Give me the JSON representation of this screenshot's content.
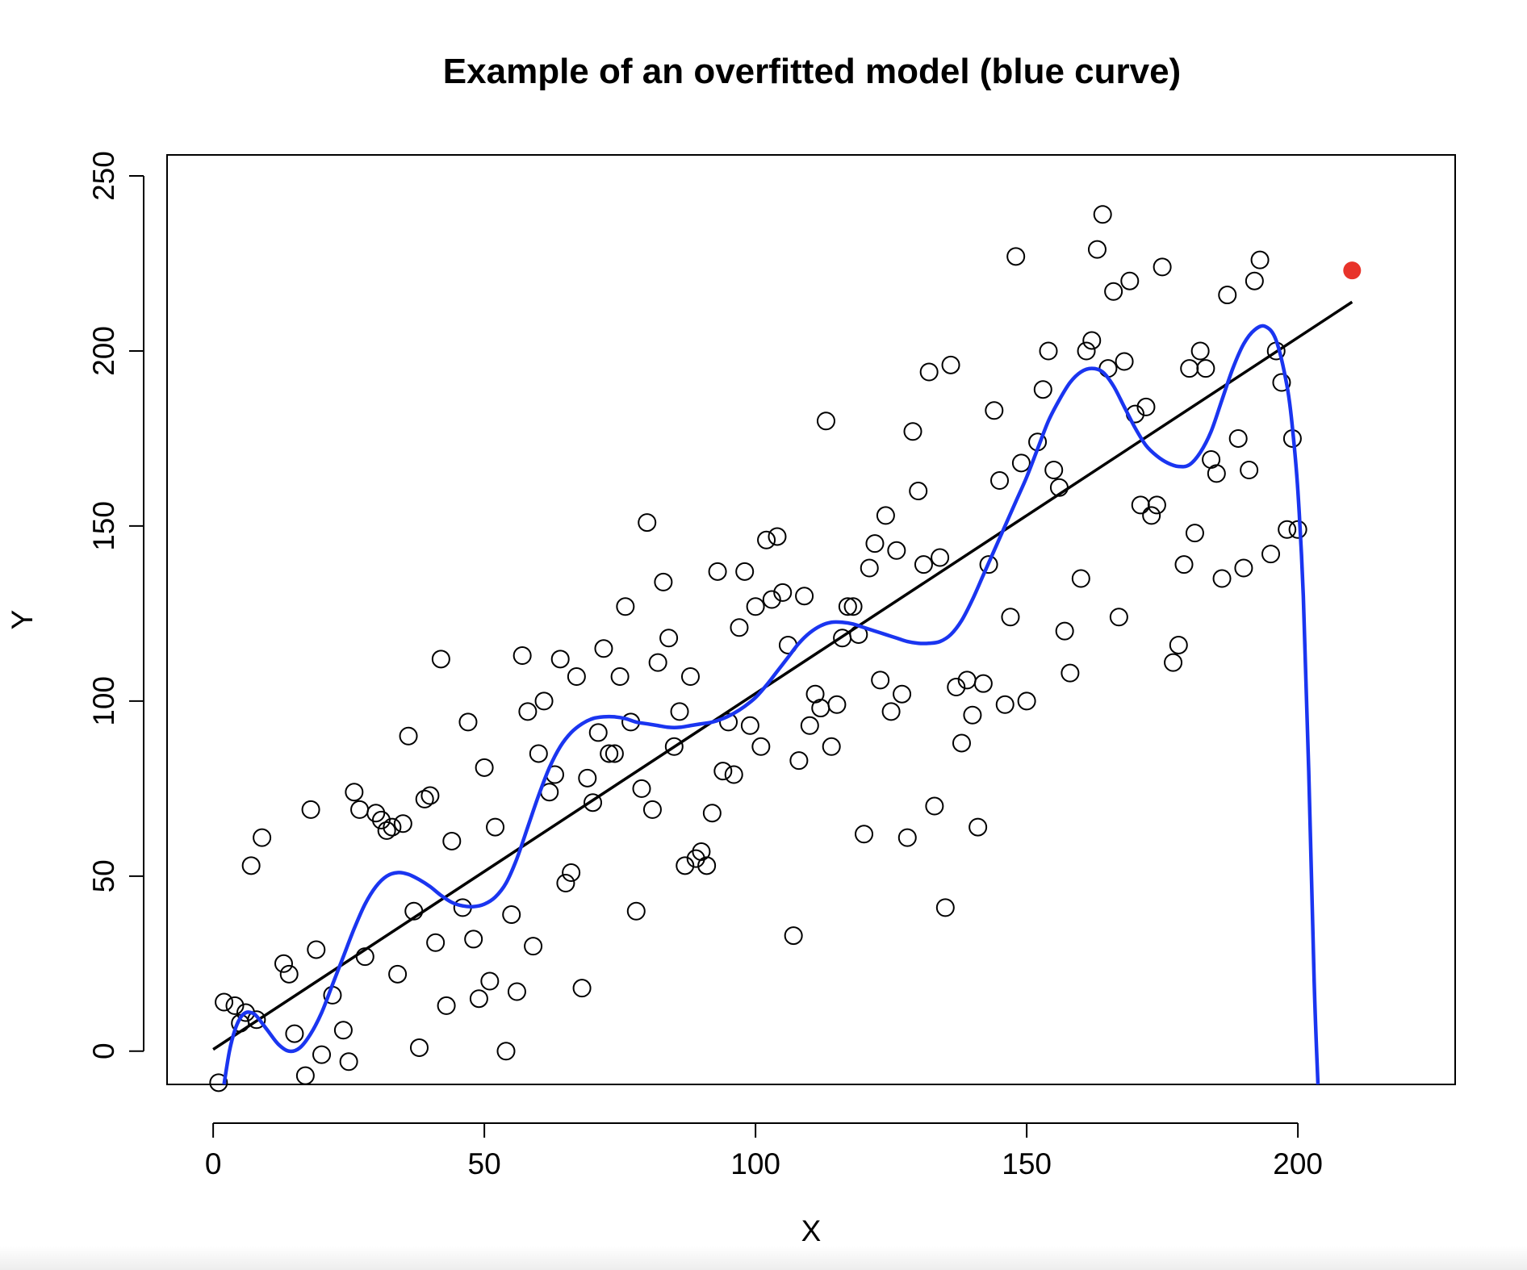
{
  "chart_data": {
    "type": "scatter",
    "title": "Example of an overfitted model (blue curve)",
    "xlabel": "X",
    "ylabel": "Y",
    "xlim": [
      -8.5,
      229
    ],
    "ylim": [
      -9.5,
      256
    ],
    "x_ticks": [
      0,
      50,
      100,
      150,
      200
    ],
    "y_ticks": [
      0,
      50,
      100,
      150,
      200,
      250
    ],
    "grid": false,
    "colors": {
      "points": "#000000",
      "linear_fit": "#000000",
      "overfit_curve": "#1a35f0",
      "highlight": "#e8332a"
    },
    "points": [
      [
        1,
        -9
      ],
      [
        2,
        14
      ],
      [
        4,
        13
      ],
      [
        5,
        8
      ],
      [
        6,
        11
      ],
      [
        7,
        53
      ],
      [
        8,
        9
      ],
      [
        9,
        61
      ],
      [
        13,
        25
      ],
      [
        14,
        22
      ],
      [
        15,
        5
      ],
      [
        17,
        -7
      ],
      [
        18,
        69
      ],
      [
        19,
        29
      ],
      [
        20,
        -1
      ],
      [
        22,
        16
      ],
      [
        24,
        6
      ],
      [
        25,
        -3
      ],
      [
        26,
        74
      ],
      [
        27,
        69
      ],
      [
        28,
        27
      ],
      [
        30,
        68
      ],
      [
        31,
        66
      ],
      [
        32,
        63
      ],
      [
        33,
        64
      ],
      [
        34,
        22
      ],
      [
        35,
        65
      ],
      [
        36,
        90
      ],
      [
        37,
        40
      ],
      [
        38,
        1
      ],
      [
        39,
        72
      ],
      [
        40,
        73
      ],
      [
        41,
        31
      ],
      [
        42,
        112
      ],
      [
        43,
        13
      ],
      [
        44,
        60
      ],
      [
        46,
        41
      ],
      [
        47,
        94
      ],
      [
        48,
        32
      ],
      [
        49,
        15
      ],
      [
        50,
        81
      ],
      [
        51,
        20
      ],
      [
        52,
        64
      ],
      [
        54,
        0
      ],
      [
        55,
        39
      ],
      [
        56,
        17
      ],
      [
        57,
        113
      ],
      [
        58,
        97
      ],
      [
        59,
        30
      ],
      [
        60,
        85
      ],
      [
        61,
        100
      ],
      [
        62,
        74
      ],
      [
        63,
        79
      ],
      [
        64,
        112
      ],
      [
        65,
        48
      ],
      [
        66,
        51
      ],
      [
        67,
        107
      ],
      [
        68,
        18
      ],
      [
        69,
        78
      ],
      [
        70,
        71
      ],
      [
        71,
        91
      ],
      [
        72,
        115
      ],
      [
        73,
        85
      ],
      [
        74,
        85
      ],
      [
        75,
        107
      ],
      [
        76,
        127
      ],
      [
        77,
        94
      ],
      [
        78,
        40
      ],
      [
        79,
        75
      ],
      [
        80,
        151
      ],
      [
        81,
        69
      ],
      [
        82,
        111
      ],
      [
        83,
        134
      ],
      [
        84,
        118
      ],
      [
        85,
        87
      ],
      [
        86,
        97
      ],
      [
        87,
        53
      ],
      [
        88,
        107
      ],
      [
        89,
        55
      ],
      [
        90,
        57
      ],
      [
        91,
        53
      ],
      [
        92,
        68
      ],
      [
        93,
        137
      ],
      [
        94,
        80
      ],
      [
        95,
        94
      ],
      [
        96,
        79
      ],
      [
        97,
        121
      ],
      [
        98,
        137
      ],
      [
        99,
        93
      ],
      [
        100,
        127
      ],
      [
        101,
        87
      ],
      [
        102,
        146
      ],
      [
        103,
        129
      ],
      [
        104,
        147
      ],
      [
        105,
        131
      ],
      [
        106,
        116
      ],
      [
        107,
        33
      ],
      [
        108,
        83
      ],
      [
        109,
        130
      ],
      [
        110,
        93
      ],
      [
        111,
        102
      ],
      [
        112,
        98
      ],
      [
        113,
        180
      ],
      [
        114,
        87
      ],
      [
        115,
        99
      ],
      [
        116,
        118
      ],
      [
        117,
        127
      ],
      [
        118,
        127
      ],
      [
        119,
        119
      ],
      [
        120,
        62
      ],
      [
        121,
        138
      ],
      [
        122,
        145
      ],
      [
        123,
        106
      ],
      [
        124,
        153
      ],
      [
        125,
        97
      ],
      [
        126,
        143
      ],
      [
        127,
        102
      ],
      [
        128,
        61
      ],
      [
        129,
        177
      ],
      [
        130,
        160
      ],
      [
        131,
        139
      ],
      [
        132,
        194
      ],
      [
        133,
        70
      ],
      [
        134,
        141
      ],
      [
        135,
        41
      ],
      [
        136,
        196
      ],
      [
        137,
        104
      ],
      [
        138,
        88
      ],
      [
        139,
        106
      ],
      [
        140,
        96
      ],
      [
        141,
        64
      ],
      [
        142,
        105
      ],
      [
        143,
        139
      ],
      [
        144,
        183
      ],
      [
        145,
        163
      ],
      [
        146,
        99
      ],
      [
        147,
        124
      ],
      [
        148,
        227
      ],
      [
        149,
        168
      ],
      [
        150,
        100
      ],
      [
        152,
        174
      ],
      [
        153,
        189
      ],
      [
        154,
        200
      ],
      [
        155,
        166
      ],
      [
        156,
        161
      ],
      [
        157,
        120
      ],
      [
        158,
        108
      ],
      [
        160,
        135
      ],
      [
        161,
        200
      ],
      [
        162,
        203
      ],
      [
        163,
        229
      ],
      [
        164,
        239
      ],
      [
        165,
        195
      ],
      [
        166,
        217
      ],
      [
        167,
        124
      ],
      [
        168,
        197
      ],
      [
        169,
        220
      ],
      [
        170,
        182
      ],
      [
        171,
        156
      ],
      [
        172,
        184
      ],
      [
        173,
        153
      ],
      [
        174,
        156
      ],
      [
        175,
        224
      ],
      [
        177,
        111
      ],
      [
        178,
        116
      ],
      [
        179,
        139
      ],
      [
        180,
        195
      ],
      [
        181,
        148
      ],
      [
        182,
        200
      ],
      [
        183,
        195
      ],
      [
        184,
        169
      ],
      [
        185,
        165
      ],
      [
        186,
        135
      ],
      [
        187,
        216
      ],
      [
        189,
        175
      ],
      [
        190,
        138
      ],
      [
        191,
        166
      ],
      [
        192,
        220
      ],
      [
        193,
        226
      ],
      [
        195,
        142
      ],
      [
        196,
        200
      ],
      [
        197,
        191
      ],
      [
        198,
        149
      ],
      [
        199,
        175
      ],
      [
        200,
        149
      ]
    ],
    "highlight_point": [
      210,
      223
    ],
    "linear_fit": {
      "x": [
        0,
        210
      ],
      "y": [
        0.5,
        214
      ]
    },
    "overfit_curve": [
      [
        2,
        -9.5
      ],
      [
        3,
        0
      ],
      [
        4,
        6
      ],
      [
        5,
        9.5
      ],
      [
        6,
        11
      ],
      [
        7,
        11
      ],
      [
        8,
        10
      ],
      [
        10,
        6
      ],
      [
        12,
        2
      ],
      [
        14,
        0
      ],
      [
        16,
        1
      ],
      [
        18,
        5
      ],
      [
        20,
        11
      ],
      [
        22,
        19
      ],
      [
        24,
        27
      ],
      [
        26,
        35
      ],
      [
        28,
        42
      ],
      [
        30,
        47
      ],
      [
        32,
        50
      ],
      [
        34,
        51
      ],
      [
        36,
        50.5
      ],
      [
        38,
        49
      ],
      [
        40,
        47
      ],
      [
        42,
        44.5
      ],
      [
        44,
        42.5
      ],
      [
        46,
        41.5
      ],
      [
        48,
        41.3
      ],
      [
        50,
        42
      ],
      [
        52,
        44
      ],
      [
        54,
        48
      ],
      [
        56,
        55
      ],
      [
        58,
        64
      ],
      [
        60,
        73
      ],
      [
        62,
        81
      ],
      [
        64,
        87
      ],
      [
        66,
        91
      ],
      [
        68,
        93.5
      ],
      [
        70,
        95
      ],
      [
        72,
        95.5
      ],
      [
        74,
        95.5
      ],
      [
        76,
        95
      ],
      [
        78,
        94
      ],
      [
        80,
        93.5
      ],
      [
        82,
        93
      ],
      [
        84,
        92.5
      ],
      [
        86,
        92.5
      ],
      [
        88,
        93
      ],
      [
        90,
        93.5
      ],
      [
        92,
        94
      ],
      [
        94,
        95
      ],
      [
        96,
        96.5
      ],
      [
        98,
        98.5
      ],
      [
        100,
        101
      ],
      [
        102,
        104.5
      ],
      [
        104,
        108.5
      ],
      [
        106,
        112.5
      ],
      [
        108,
        116.5
      ],
      [
        110,
        119.5
      ],
      [
        112,
        121.5
      ],
      [
        114,
        122.5
      ],
      [
        116,
        122.5
      ],
      [
        118,
        122
      ],
      [
        120,
        121
      ],
      [
        122,
        120
      ],
      [
        124,
        119
      ],
      [
        126,
        118
      ],
      [
        128,
        117
      ],
      [
        130,
        116.5
      ],
      [
        132,
        116.5
      ],
      [
        134,
        117
      ],
      [
        136,
        119
      ],
      [
        138,
        123
      ],
      [
        140,
        129
      ],
      [
        142,
        136
      ],
      [
        144,
        143
      ],
      [
        146,
        150
      ],
      [
        148,
        157
      ],
      [
        150,
        164
      ],
      [
        152,
        172
      ],
      [
        154,
        180
      ],
      [
        156,
        186
      ],
      [
        158,
        191
      ],
      [
        160,
        194
      ],
      [
        162,
        195
      ],
      [
        164,
        194
      ],
      [
        166,
        190
      ],
      [
        168,
        184
      ],
      [
        170,
        178
      ],
      [
        172,
        173
      ],
      [
        174,
        170
      ],
      [
        176,
        168
      ],
      [
        178,
        167
      ],
      [
        180,
        167.5
      ],
      [
        182,
        171
      ],
      [
        184,
        177
      ],
      [
        186,
        186
      ],
      [
        188,
        195
      ],
      [
        190,
        202
      ],
      [
        192,
        206
      ],
      [
        194,
        207
      ],
      [
        196,
        203
      ],
      [
        198,
        190
      ],
      [
        199,
        178
      ],
      [
        200,
        160
      ],
      [
        201,
        130
      ],
      [
        202,
        80
      ],
      [
        203,
        20
      ],
      [
        203.7,
        -9.5
      ]
    ]
  }
}
